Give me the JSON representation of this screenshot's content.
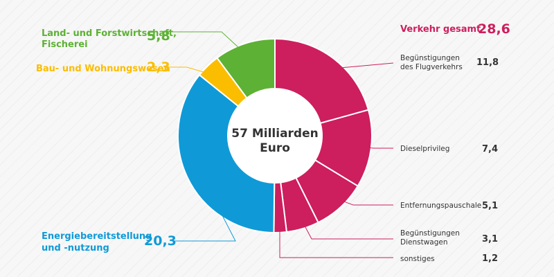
{
  "chart_data": {
    "type": "pie",
    "style": "donut",
    "center_label": [
      "57 Milliarden",
      "Euro"
    ],
    "total": 57,
    "unit": "Milliarden Euro",
    "groups": [
      {
        "name": "Verkehr gesamt",
        "value_label": "28,6",
        "value": 28.6,
        "color": "#cd1e5d",
        "slices": [
          {
            "lines": [
              "Begünstigungen",
              "des Flugverkehrs"
            ],
            "value": 11.8,
            "value_label": "11,8"
          },
          {
            "lines": [
              "Dieselprivileg"
            ],
            "value": 7.4,
            "value_label": "7,4"
          },
          {
            "lines": [
              "Entfernungspauschale"
            ],
            "value": 5.1,
            "value_label": "5,1"
          },
          {
            "lines": [
              "Begünstigungen",
              "Dienstwagen"
            ],
            "value": 3.1,
            "value_label": "3,1"
          },
          {
            "lines": [
              "sonstiges"
            ],
            "value": 1.2,
            "value_label": "1,2"
          }
        ]
      },
      {
        "name": "Energiebereitstellung und -nutzung",
        "lines": [
          "Energiebereitstellung",
          "und -nutzung"
        ],
        "value_label": "20,3",
        "value": 20.3,
        "color": "#0f9ad7",
        "slices": []
      },
      {
        "name": "Bau- und Wohnungswesen",
        "lines": [
          "Bau- und Wohnungswesen"
        ],
        "value_label": "2,3",
        "value": 2.3,
        "color": "#fbbd00",
        "slices": []
      },
      {
        "name": "Land- und Forstwirtschaft, Fischerei",
        "lines": [
          "Land- und Forstwirtschaft,",
          "Fischerei"
        ],
        "value_label": "5,8",
        "value": 5.8,
        "color": "#5db134",
        "slices": []
      }
    ]
  }
}
